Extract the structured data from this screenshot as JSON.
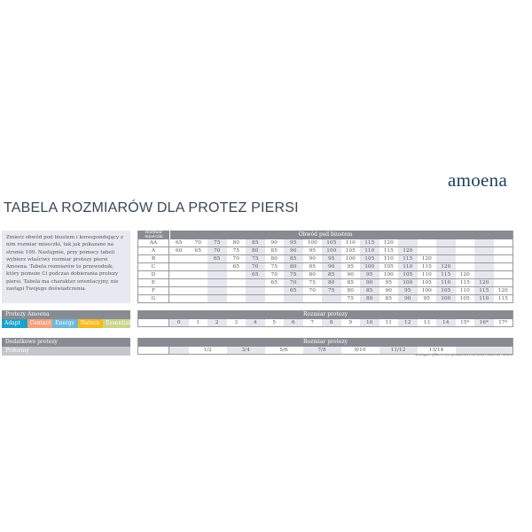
{
  "logo": "amoena",
  "title": "TABELA ROZMIARÓW DLA PROTEZ PIERSI",
  "intro": "Zmierz obwód pod biustem i korespondujący z nim rozmiar miseczki, tak jak pokazano na stronie 109. Następnie, przy pomocy tabeli wybierz właściwy rozmiar protezy piersi Amoena. Tabela rozmiarów to przewodnik, który pomoże Ci podczas dobierania protezy piersi. Tabela ma charakter orientacyjny, nie zastąpi Twojego doświadczenia.",
  "products": {
    "label": "Protezy Amoena",
    "items": [
      {
        "name": "Adapt",
        "color": "#1aa3c8"
      },
      {
        "name": "Contact",
        "color": "#f4a07e"
      },
      {
        "name": "Energy",
        "color": "#6cb8dc"
      },
      {
        "name": "Natura",
        "color": "#f7b91e"
      },
      {
        "name": "Essential",
        "color": "#c9d58c"
      }
    ]
  },
  "additional": {
    "label": "Dodatkowe protezy",
    "item": "Priformy"
  },
  "size_table": {
    "corner": "Rozmiar miseczki",
    "header": "Obwód pod biustem",
    "rows": [
      {
        "cup": "AA",
        "start": 0,
        "values": [
          "65",
          "70",
          "75",
          "80",
          "85",
          "90",
          "95",
          "100",
          "105",
          "110",
          "115",
          "120"
        ]
      },
      {
        "cup": "A",
        "start": 0,
        "values": [
          "60",
          "65",
          "70",
          "75",
          "80",
          "85",
          "90",
          "95",
          "100",
          "105",
          "110",
          "115",
          "120"
        ]
      },
      {
        "cup": "B",
        "start": 2,
        "values": [
          "65",
          "70",
          "75",
          "80",
          "85",
          "90",
          "95",
          "100",
          "105",
          "110",
          "115",
          "120"
        ]
      },
      {
        "cup": "C",
        "start": 3,
        "values": [
          "65",
          "70",
          "75",
          "80",
          "85",
          "90",
          "95",
          "100",
          "105",
          "110",
          "115",
          "120"
        ]
      },
      {
        "cup": "D",
        "start": 4,
        "values": [
          "65",
          "70",
          "75",
          "80",
          "85",
          "90",
          "95",
          "100",
          "105",
          "110",
          "115",
          "120"
        ]
      },
      {
        "cup": "E",
        "start": 5,
        "values": [
          "65",
          "70",
          "75",
          "80",
          "85",
          "90",
          "95",
          "100",
          "105",
          "110",
          "115",
          "120"
        ]
      },
      {
        "cup": "F",
        "start": 6,
        "values": [
          "65",
          "70",
          "75",
          "80",
          "85",
          "90",
          "95",
          "100",
          "105",
          "110",
          "115",
          "120"
        ]
      },
      {
        "cup": "G",
        "start": 9,
        "values": [
          "75",
          "80",
          "85",
          "90",
          "95",
          "100",
          "105",
          "110",
          "115"
        ]
      }
    ]
  },
  "prosthesis_sizes": {
    "header": "Rozmiar protezy",
    "values": [
      "0",
      "1",
      "2",
      "3",
      "4",
      "5",
      "6",
      "7",
      "8",
      "9",
      "10",
      "11",
      "12",
      "13",
      "14",
      "15*",
      "16*",
      "17*"
    ],
    "note": "*Dostępne tylko w wersji Amoena Essential i Amoena Natura"
  },
  "priform_sizes": {
    "header": "Rozmiar protezy",
    "values": [
      "",
      "1/2",
      "3/4",
      "5/6",
      "7/8",
      "9/10",
      "11/12",
      "13/14",
      ""
    ]
  }
}
